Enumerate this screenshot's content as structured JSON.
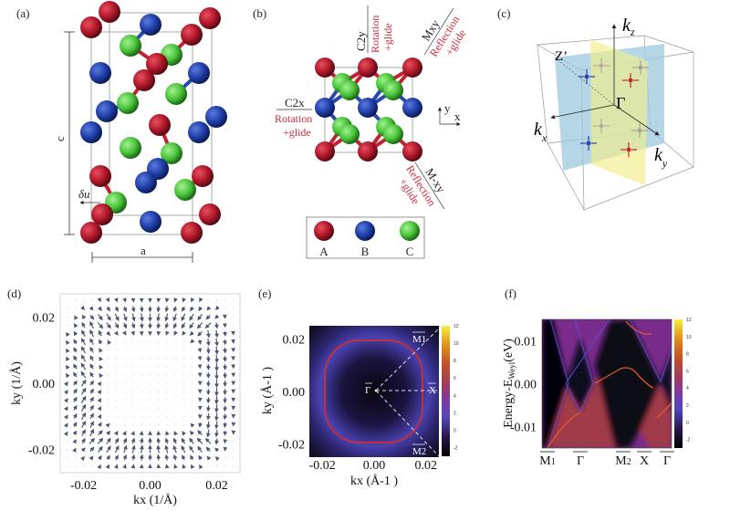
{
  "panels": {
    "a": {
      "label": "(a)",
      "dim_c": "c",
      "dim_a": "a",
      "displacement": "δu"
    },
    "b": {
      "label": "(b)",
      "c2y": {
        "symbol": "C2y",
        "line1": "Rotation",
        "line2": "+glide"
      },
      "c2x": {
        "symbol": "C2x",
        "line1": "Rotation",
        "line2": "+glide"
      },
      "mxy": {
        "symbol": "Mxy",
        "line1": "Reflection",
        "line2": "+glide"
      },
      "m_xy": {
        "symbol": "M-xy",
        "line1": "Reflection",
        "line2": "+glide"
      },
      "axis_x": "x",
      "axis_y": "y",
      "legend": [
        {
          "name": "A",
          "color": "#b0182a"
        },
        {
          "name": "B",
          "color": "#1f3fa8"
        },
        {
          "name": "C",
          "color": "#49c43a"
        }
      ]
    },
    "c": {
      "label": "(c)",
      "kz": "k",
      "kz_sub": "z",
      "kx": "k",
      "kx_sub": "x",
      "ky": "k",
      "ky_sub": "y",
      "gamma": "Γ",
      "zprime": "Z’",
      "plane_colors": {
        "blue": "#9cc8de",
        "yellow": "#f2ee8a"
      }
    }
  },
  "chart_data": [
    {
      "panel": "(d)",
      "type": "quiver",
      "xlabel": "kx (1/Å)",
      "ylabel": "ky (1/Å)",
      "xlim": [
        -0.027,
        0.027
      ],
      "ylim": [
        -0.027,
        0.027
      ],
      "x_ticks": [
        "-0.02",
        "0.00",
        "0.02"
      ],
      "y_ticks": [
        "0.02",
        "0.00",
        "-0.02"
      ],
      "arrow_color": "#4a5670"
    },
    {
      "panel": "(e)",
      "type": "heatmap",
      "xlabel": "kx (Å-1 )",
      "ylabel": "ky (Å-1 )",
      "xlim": [
        -0.025,
        0.025
      ],
      "ylim": [
        -0.025,
        0.025
      ],
      "x_ticks": [
        "-0.02",
        "0.00",
        "0.02"
      ],
      "y_ticks": [
        "0.02",
        "0.00",
        "-0.02"
      ],
      "colorbar_ticks": [
        "12",
        "10",
        "8",
        "6",
        "4",
        "2",
        "0",
        "-2"
      ],
      "colorbar_range": [
        -3,
        12
      ],
      "points": {
        "gamma": "Γ",
        "x": "X",
        "m1": "M1",
        "m2": "M2"
      }
    },
    {
      "panel": "(f)",
      "type": "heatmap",
      "ylabel": "Energy-E",
      "ylabel_sub": "Weyl",
      "ylabel_unit": "(eV)",
      "ylim": [
        -0.015,
        0.015
      ],
      "y_ticks": [
        "0.01",
        "0.00",
        "-0.01"
      ],
      "x_ticks": [
        "M1",
        "Γ",
        "M2",
        "X",
        "Γ"
      ],
      "colorbar_ticks": [
        "12",
        "10",
        "8",
        "6",
        "4",
        "2",
        "0",
        "-2"
      ],
      "colorbar_range": [
        -3,
        12
      ]
    }
  ]
}
